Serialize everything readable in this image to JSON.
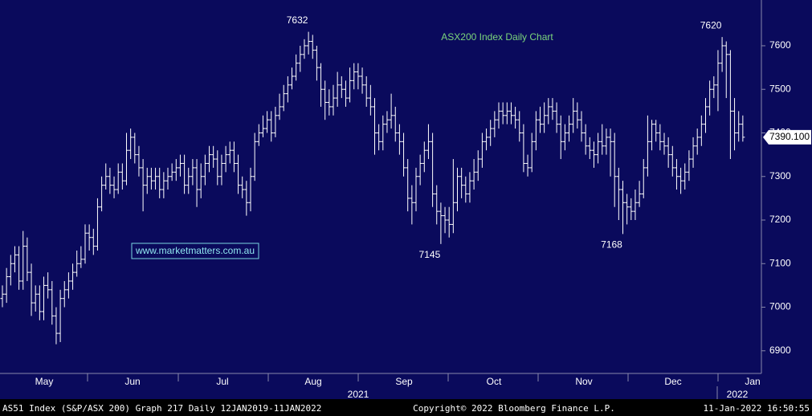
{
  "chart_data": {
    "type": "ohlc",
    "title": "ASX200 Index Daily Chart",
    "watermark": "www.marketmatters.com.au",
    "footer_left": "AS51 Index (S&P/ASX 200) Graph 217  Daily 12JAN2019-11JAN2022",
    "footer_center": "Copyright© 2022 Bloomberg Finance L.P.",
    "footer_right": "11-Jan-2022 16:50:55",
    "months": [
      "May",
      "Jun",
      "Jul",
      "Aug",
      "Sep",
      "Oct",
      "Nov",
      "Dec",
      "Jan"
    ],
    "years": [
      "2021",
      "2022"
    ],
    "color": "#ffffff",
    "ylim": [
      6848,
      7705
    ],
    "yticks": [
      6900,
      7000,
      7100,
      7200,
      7300,
      7400,
      7500,
      7600
    ],
    "annotations": [
      7632,
      7145,
      7168,
      7620
    ],
    "last_price": {
      "value": 7390.1,
      "label": "7390.100"
    },
    "open": [
      7020,
      7030,
      7070,
      7100,
      7120,
      7060,
      7140,
      7080,
      7010,
      7030,
      6990,
      7050,
      7040,
      6980,
      6940,
      7020,
      7040,
      7060,
      7080,
      7100,
      7110,
      7170,
      7160,
      7140,
      7230,
      7280,
      7300,
      7280,
      7270,
      7310,
      7290,
      7360,
      7390,
      7350,
      7320,
      7280,
      7300,
      7290,
      7300,
      7270,
      7290,
      7300,
      7310,
      7320,
      7330,
      7280,
      7300,
      7320,
      7270,
      7300,
      7330,
      7350,
      7340,
      7300,
      7330,
      7350,
      7360,
      7330,
      7280,
      7270,
      7240,
      7300,
      7380,
      7400,
      7410,
      7430,
      7400,
      7440,
      7460,
      7490,
      7510,
      7530,
      7560,
      7580,
      7600,
      7610,
      7590,
      7550,
      7500,
      7470,
      7460,
      7480,
      7510,
      7500,
      7480,
      7520,
      7540,
      7530,
      7510,
      7480,
      7460,
      7400,
      7380,
      7420,
      7430,
      7440,
      7400,
      7380,
      7320,
      7250,
      7240,
      7300,
      7330,
      7360,
      7380,
      7260,
      7220,
      7210,
      7200,
      7190,
      7240,
      7300,
      7280,
      7260,
      7290,
      7310,
      7340,
      7380,
      7390,
      7410,
      7430,
      7450,
      7440,
      7450,
      7440,
      7430,
      7400,
      7330,
      7320,
      7380,
      7430,
      7420,
      7440,
      7460,
      7450,
      7420,
      7380,
      7400,
      7420,
      7450,
      7430,
      7400,
      7370,
      7360,
      7350,
      7380,
      7370,
      7390,
      7380,
      7300,
      7270,
      7240,
      7230,
      7220,
      7240,
      7260,
      7320,
      7380,
      7420,
      7400,
      7380,
      7370,
      7350,
      7320,
      7300,
      7290,
      7310,
      7340,
      7370,
      7390,
      7420,
      7460,
      7500,
      7510,
      7560,
      7600,
      7580,
      7450,
      7400,
      7420
    ],
    "high": [
      7050,
      7090,
      7120,
      7140,
      7140,
      7175,
      7160,
      7100,
      7050,
      7050,
      7070,
      7080,
      7060,
      7000,
      7040,
      7060,
      7080,
      7100,
      7130,
      7140,
      7190,
      7190,
      7180,
      7250,
      7300,
      7330,
      7320,
      7300,
      7330,
      7330,
      7400,
      7410,
      7400,
      7370,
      7340,
      7320,
      7320,
      7320,
      7320,
      7310,
      7320,
      7330,
      7340,
      7350,
      7350,
      7320,
      7340,
      7340,
      7330,
      7350,
      7370,
      7370,
      7360,
      7350,
      7370,
      7380,
      7380,
      7350,
      7300,
      7290,
      7320,
      7400,
      7420,
      7440,
      7450,
      7450,
      7460,
      7490,
      7510,
      7530,
      7550,
      7580,
      7600,
      7615,
      7632,
      7625,
      7600,
      7560,
      7520,
      7500,
      7510,
      7540,
      7530,
      7520,
      7550,
      7560,
      7560,
      7550,
      7530,
      7510,
      7480,
      7420,
      7440,
      7450,
      7490,
      7460,
      7420,
      7400,
      7340,
      7280,
      7320,
      7350,
      7380,
      7420,
      7400,
      7280,
      7240,
      7230,
      7230,
      7340,
      7320,
      7320,
      7300,
      7310,
      7340,
      7360,
      7400,
      7410,
      7430,
      7450,
      7470,
      7470,
      7470,
      7470,
      7460,
      7450,
      7420,
      7350,
      7400,
      7450,
      7460,
      7470,
      7480,
      7480,
      7470,
      7440,
      7420,
      7440,
      7480,
      7470,
      7450,
      7420,
      7390,
      7380,
      7400,
      7420,
      7410,
      7410,
      7400,
      7320,
      7290,
      7260,
      7250,
      7270,
      7290,
      7340,
      7440,
      7430,
      7430,
      7420,
      7400,
      7390,
      7370,
      7340,
      7320,
      7330,
      7360,
      7390,
      7410,
      7440,
      7480,
      7520,
      7530,
      7590,
      7620,
      7610,
      7590,
      7480,
      7450,
      7440
    ],
    "low": [
      7000,
      7010,
      7050,
      7080,
      7040,
      7040,
      7060,
      6980,
      6990,
      6970,
      6970,
      7020,
      6960,
      6915,
      6920,
      7000,
      7020,
      7040,
      7070,
      7090,
      7100,
      7130,
      7120,
      7130,
      7220,
      7270,
      7260,
      7250,
      7260,
      7270,
      7280,
      7340,
      7330,
      7300,
      7220,
      7260,
      7270,
      7270,
      7250,
      7250,
      7270,
      7290,
      7290,
      7300,
      7260,
      7260,
      7280,
      7230,
      7250,
      7280,
      7310,
      7320,
      7280,
      7280,
      7310,
      7330,
      7310,
      7260,
      7250,
      7210,
      7220,
      7290,
      7370,
      7390,
      7400,
      7380,
      7390,
      7430,
      7450,
      7470,
      7500,
      7520,
      7540,
      7570,
      7580,
      7570,
      7520,
      7460,
      7430,
      7440,
      7440,
      7460,
      7480,
      7460,
      7470,
      7500,
      7500,
      7490,
      7460,
      7440,
      7350,
      7360,
      7360,
      7400,
      7410,
      7380,
      7350,
      7300,
      7220,
      7190,
      7220,
      7280,
      7310,
      7340,
      7230,
      7190,
      7145,
      7170,
      7160,
      7170,
      7220,
      7250,
      7240,
      7240,
      7270,
      7290,
      7320,
      7360,
      7370,
      7390,
      7410,
      7420,
      7420,
      7420,
      7410,
      7380,
      7310,
      7300,
      7310,
      7360,
      7400,
      7400,
      7420,
      7430,
      7400,
      7340,
      7360,
      7380,
      7400,
      7410,
      7380,
      7350,
      7340,
      7320,
      7330,
      7350,
      7350,
      7300,
      7230,
      7200,
      7168,
      7190,
      7200,
      7200,
      7230,
      7250,
      7300,
      7360,
      7380,
      7360,
      7350,
      7320,
      7300,
      7270,
      7260,
      7270,
      7290,
      7320,
      7350,
      7370,
      7400,
      7440,
      7480,
      7450,
      7540,
      7480,
      7340,
      7360,
      7380,
      7380
    ],
    "close": [
      7030,
      7070,
      7100,
      7120,
      7060,
      7140,
      7080,
      7010,
      7030,
      6990,
      7050,
      7040,
      6980,
      6940,
      7020,
      7040,
      7060,
      7080,
      7100,
      7110,
      7170,
      7160,
      7140,
      7230,
      7280,
      7300,
      7280,
      7270,
      7310,
      7290,
      7360,
      7390,
      7350,
      7320,
      7280,
      7300,
      7290,
      7300,
      7270,
      7290,
      7300,
      7310,
      7320,
      7330,
      7280,
      7300,
      7320,
      7270,
      7300,
      7330,
      7350,
      7340,
      7300,
      7330,
      7350,
      7360,
      7330,
      7280,
      7270,
      7240,
      7300,
      7380,
      7400,
      7410,
      7430,
      7400,
      7440,
      7460,
      7490,
      7510,
      7530,
      7560,
      7580,
      7600,
      7610,
      7590,
      7550,
      7500,
      7470,
      7460,
      7480,
      7510,
      7500,
      7480,
      7520,
      7540,
      7530,
      7510,
      7480,
      7460,
      7400,
      7380,
      7420,
      7430,
      7440,
      7400,
      7380,
      7320,
      7250,
      7240,
      7300,
      7330,
      7360,
      7380,
      7260,
      7220,
      7210,
      7200,
      7190,
      7240,
      7300,
      7280,
      7260,
      7290,
      7310,
      7340,
      7380,
      7390,
      7410,
      7430,
      7450,
      7440,
      7450,
      7440,
      7430,
      7400,
      7330,
      7320,
      7380,
      7430,
      7420,
      7440,
      7460,
      7450,
      7420,
      7380,
      7400,
      7420,
      7450,
      7430,
      7400,
      7370,
      7360,
      7350,
      7380,
      7370,
      7390,
      7380,
      7300,
      7270,
      7240,
      7230,
      7220,
      7240,
      7260,
      7320,
      7380,
      7420,
      7400,
      7380,
      7370,
      7350,
      7320,
      7300,
      7290,
      7310,
      7340,
      7370,
      7390,
      7420,
      7460,
      7500,
      7510,
      7560,
      7600,
      7580,
      7450,
      7400,
      7420,
      7390.1
    ]
  }
}
